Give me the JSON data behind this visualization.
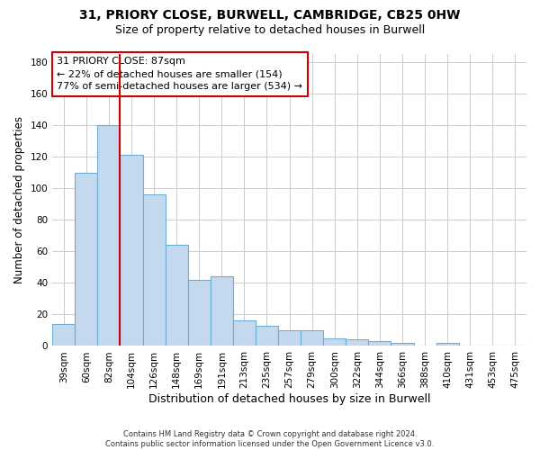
{
  "title1": "31, PRIORY CLOSE, BURWELL, CAMBRIDGE, CB25 0HW",
  "title2": "Size of property relative to detached houses in Burwell",
  "xlabel": "Distribution of detached houses by size in Burwell",
  "ylabel": "Number of detached properties",
  "categories": [
    "39sqm",
    "60sqm",
    "82sqm",
    "104sqm",
    "126sqm",
    "148sqm",
    "169sqm",
    "191sqm",
    "213sqm",
    "235sqm",
    "257sqm",
    "279sqm",
    "300sqm",
    "322sqm",
    "344sqm",
    "366sqm",
    "388sqm",
    "410sqm",
    "431sqm",
    "453sqm",
    "475sqm"
  ],
  "bar_counts": [
    14,
    110,
    140,
    121,
    96,
    64,
    42,
    44,
    16,
    13,
    10,
    10,
    5,
    4,
    3,
    2,
    0,
    2,
    0,
    0,
    0
  ],
  "bar_color": "#c5d9ee",
  "bar_edge_color": "#6aaed6",
  "vline_x": 2.5,
  "vline_color": "#cc0000",
  "annotation_text": "31 PRIORY CLOSE: 87sqm\n← 22% of detached houses are smaller (154)\n77% of semi-detached houses are larger (534) →",
  "annotation_box_color": "#cc0000",
  "ylim": [
    0,
    185
  ],
  "yticks": [
    0,
    20,
    40,
    60,
    80,
    100,
    120,
    140,
    160,
    180
  ],
  "background_color": "#ffffff",
  "grid_color": "#cccccc",
  "footer": "Contains HM Land Registry data © Crown copyright and database right 2024.\nContains public sector information licensed under the Open Government Licence v3.0.",
  "title1_fontsize": 10,
  "title2_fontsize": 9,
  "xlabel_fontsize": 9,
  "ylabel_fontsize": 8.5,
  "tick_fontsize": 7.5,
  "annotation_fontsize": 8,
  "footer_fontsize": 6
}
